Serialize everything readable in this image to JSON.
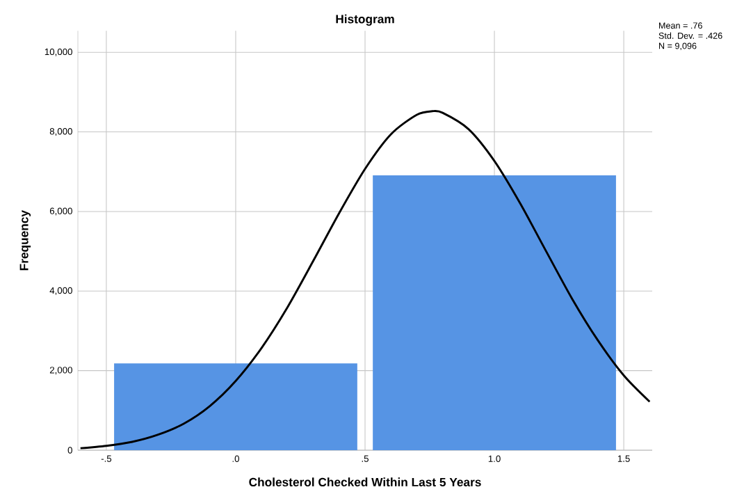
{
  "chart_data": {
    "type": "histogram",
    "title": "Histogram",
    "xlabel": "Cholesterol Checked Within Last 5 Years",
    "ylabel": "Frequency",
    "bins": [
      -0.5,
      0.5,
      1.5
    ],
    "series": [
      {
        "color": "#5694e4",
        "values": [
          2180,
          6910
        ]
      },
      {
        "type": "line",
        "color": "#000000",
        "x": [
          -0.6,
          -0.5,
          -0.4,
          -0.3,
          -0.2,
          -0.1,
          0.0,
          0.1,
          0.2,
          0.3,
          0.4,
          0.5,
          0.6,
          0.7,
          0.76,
          0.8,
          0.9,
          1.0,
          1.1,
          1.2,
          1.3,
          1.4,
          1.5,
          1.6
        ],
        "values": [
          50,
          110,
          210,
          390,
          670,
          1110,
          1740,
          2570,
          3590,
          4760,
          5960,
          7070,
          7940,
          8430,
          8520,
          8480,
          8070,
          7270,
          6200,
          5000,
          3810,
          2760,
          1880,
          1220
        ]
      }
    ],
    "xlim": [
      -0.61,
      1.61
    ],
    "ylim": [
      0,
      10540
    ],
    "xticks": [
      {
        "value": -0.5,
        "label": "-.5"
      },
      {
        "value": 0,
        "label": ".0"
      },
      {
        "value": 0.5,
        "label": ".5"
      },
      {
        "value": 1.0,
        "label": "1.0"
      },
      {
        "value": 1.5,
        "label": "1.5"
      }
    ],
    "yticks": [
      0,
      {
        "value": 2000,
        "label": "2,000"
      },
      {
        "value": 4000,
        "label": "4,000"
      },
      {
        "value": 6000,
        "label": "6,000"
      },
      {
        "value": 8000,
        "label": "8,000"
      },
      {
        "value": 10000,
        "label": "10,000"
      }
    ],
    "grid": true,
    "marker": "none",
    "line_style": "solid",
    "annotations": [
      "Mean = .76",
      "Std. Dev. = .426",
      "N = 9,096"
    ]
  }
}
